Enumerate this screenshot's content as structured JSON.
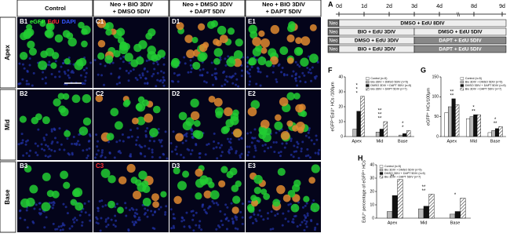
{
  "micrographs": {
    "columns": [
      [
        "Control"
      ],
      [
        "Neo + BIO 3DIV",
        "+ DMSO 5DIV"
      ],
      [
        "Neo + DMSO 3DIV",
        "+ DAPT 5DIV"
      ],
      [
        "Neo + BIO 3DIV",
        "+ DAPT 5DIV"
      ]
    ],
    "rows": [
      {
        "label": "Apex",
        "panels": [
          "B1",
          "C1",
          "D1",
          "E1"
        ]
      },
      {
        "label": "Mid",
        "panels": [
          "B2",
          "C2",
          "D2",
          "E2"
        ]
      },
      {
        "label": "Base",
        "panels": [
          "B3",
          "C3",
          "D3",
          "E3"
        ]
      }
    ],
    "channels": [
      {
        "name": "eGFP",
        "color": "#33ff33"
      },
      {
        "name": "EdU",
        "color": "#ff3333"
      },
      {
        "name": "DAPI",
        "color": "#3355ff"
      }
    ]
  },
  "timeline": {
    "label": "A",
    "days": [
      "0d",
      "1d",
      "2d",
      "3d",
      "4d",
      "8d",
      "9d"
    ],
    "break": "\\\\",
    "start": "Neo",
    "rows": [
      [
        "DMSO + EdU 8DIV"
      ],
      [
        "BIO + EdU 3DIV",
        "DMSO + EdU 5DIV"
      ],
      [
        "DMSO + EdU 3DIV",
        "DAPT + EdU 5DIV"
      ],
      [
        "BIO + EdU 3DIV",
        "DAPT + EdU 5DIV"
      ]
    ]
  },
  "chart_data": [
    {
      "type": "bar",
      "panel": "F",
      "y_label": "eGFP⁺EdU⁺ HCs /100μm",
      "categories": [
        "Apex",
        "Mid",
        "Base"
      ],
      "ylim": [
        0,
        40
      ],
      "yticks": [
        0,
        10,
        20,
        30,
        40
      ],
      "series": [
        {
          "name": "Control (n=5)",
          "color": "#ffffff",
          "values": [
            0,
            0,
            0
          ]
        },
        {
          "name": "Bio 3DIV + DMSO 5DIV (n=5)",
          "color": "#bbbbbb",
          "values": [
            5,
            3,
            1
          ]
        },
        {
          "name": "DMSO 3DIV + DAPT 5DIV (n=5)",
          "color": "#111111",
          "values": [
            17,
            5,
            2
          ]
        },
        {
          "name": "Bio 3DIV + DAPT 5DIV (n=7)",
          "color": "#888888",
          "hatch": true,
          "values": [
            27,
            10,
            4
          ]
        }
      ],
      "significance": [
        [
          "*",
          "*",
          "*"
        ],
        [
          "**",
          "**",
          "**"
        ],
        [
          "*",
          "*"
        ]
      ]
    },
    {
      "type": "bar",
      "panel": "G",
      "y_label": "eGFP⁺ HCs/100μm",
      "categories": [
        "Apex",
        "Mid",
        "Base"
      ],
      "ylim": [
        0,
        150
      ],
      "yticks": [
        0,
        50,
        100,
        150
      ],
      "series": [
        {
          "name": "Control (n=5)",
          "color": "#ffffff",
          "values": [
            60,
            45,
            10
          ]
        },
        {
          "name": "Bio 3DIV + DMSO 5DIV (n=5)",
          "color": "#bbbbbb",
          "values": [
            75,
            50,
            15
          ]
        },
        {
          "name": "DMSO 3DIV + DAPT 5DIV (n=5)",
          "color": "#111111",
          "values": [
            95,
            55,
            20
          ]
        },
        {
          "name": "Bio 3DIV + DAPT 5DIV (n=7)",
          "color": "#888888",
          "hatch": true,
          "values": [
            80,
            55,
            25
          ]
        }
      ],
      "significance": [
        [
          "**",
          "**"
        ],
        [
          "**",
          "*"
        ],
        [
          "**",
          "*"
        ]
      ]
    },
    {
      "type": "bar",
      "panel": "H",
      "y_label": "EdU⁺ percentage of eGFP⁺ HCs",
      "categories": [
        "Apex",
        "Mid",
        "Base"
      ],
      "ylim": [
        0,
        40
      ],
      "yticks": [
        0,
        10,
        20,
        30,
        40
      ],
      "series": [
        {
          "name": "Control (n=5)",
          "color": "#ffffff",
          "values": [
            0,
            0,
            0
          ]
        },
        {
          "name": "Bio 3DIV + DMSO 5DIV (n=5)",
          "color": "#bbbbbb",
          "values": [
            5,
            7,
            3
          ]
        },
        {
          "name": "DMSO 3DIV + DAPT 5DIV (n=5)",
          "color": "#111111",
          "values": [
            17,
            9,
            5
          ]
        },
        {
          "name": "Bio 3DIV + DAPT 5DIV (n=7)",
          "color": "#888888",
          "hatch": true,
          "values": [
            29,
            18,
            15
          ]
        }
      ],
      "significance": [
        [
          "**"
        ],
        [
          "**",
          "**"
        ],
        [
          "*"
        ]
      ]
    }
  ]
}
